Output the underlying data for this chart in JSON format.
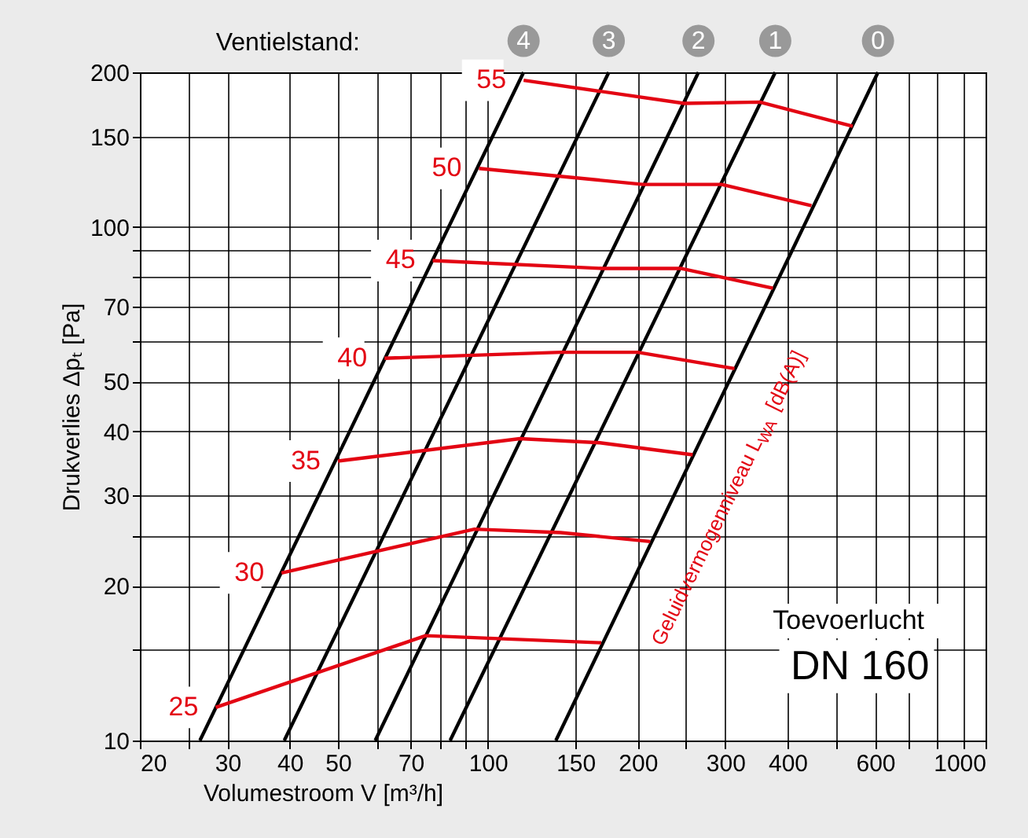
{
  "chart_data": {
    "type": "line",
    "xlabel": "Volumestroom V [m³/h]",
    "ylabel": "Drukverlies Δpₜ [Pa]",
    "log": "xy",
    "grid": true,
    "marker": "none",
    "line_style": "solid",
    "xlim": [
      20,
      1000
    ],
    "ylim": [
      10,
      200
    ],
    "xticks": [
      20,
      {
        "value": 25,
        "label": null
      },
      30,
      40,
      50,
      {
        "value": 60,
        "label": null
      },
      70,
      {
        "value": 80,
        "label": null
      },
      {
        "value": 90,
        "label": null
      },
      100,
      150,
      200,
      {
        "value": 250,
        "label": null
      },
      300,
      400,
      {
        "value": 500,
        "label": null
      },
      600,
      {
        "value": 700,
        "label": null
      },
      {
        "value": 800,
        "label": null
      },
      {
        "value": 900,
        "label": null
      },
      1000
    ],
    "yticks": [
      10,
      {
        "value": 15,
        "label": null
      },
      20,
      {
        "value": 25,
        "label": null
      },
      30,
      40,
      50,
      {
        "value": 60,
        "label": null
      },
      70,
      {
        "value": 80,
        "label": null
      },
      {
        "value": 90,
        "label": null
      },
      100,
      150,
      200
    ],
    "annotations": [
      "Ventielstand:",
      "Geluidvermogenniveau L$_{WA}$ [dB(A)]",
      "Toevoerlucht",
      "DN 160"
    ],
    "series": [
      {
        "name": "4",
        "color": "#000000",
        "x": [
          26.4,
          118
        ],
        "values": [
          10,
          200
        ]
      },
      {
        "name": "3",
        "color": "#000000",
        "x": [
          39,
          175
        ],
        "values": [
          10,
          200
        ]
      },
      {
        "name": "2",
        "color": "#000000",
        "x": [
          59.4,
          265
        ],
        "values": [
          10,
          200
        ]
      },
      {
        "name": "1",
        "color": "#000000",
        "x": [
          84,
          378
        ],
        "values": [
          10,
          200
        ]
      },
      {
        "name": "0",
        "color": "#000000",
        "x": [
          137,
          608
        ],
        "values": [
          10,
          200
        ]
      },
      {
        "name": "55",
        "color": "#e30613",
        "x": [
          118,
          248,
          352,
          541
        ],
        "values": [
          193,
          174,
          175,
          157
        ]
      },
      {
        "name": "50",
        "color": "#e30613",
        "x": [
          96,
          205,
          295,
          447
        ],
        "values": [
          130,
          121,
          121,
          110
        ]
      },
      {
        "name": "45",
        "color": "#e30613",
        "x": [
          77.5,
          170,
          245,
          374
        ],
        "values": [
          86,
          83,
          83,
          76
        ]
      },
      {
        "name": "40",
        "color": "#e30613",
        "x": [
          62,
          140,
          200,
          313
        ],
        "values": [
          55.5,
          57,
          57,
          53
        ]
      },
      {
        "name": "35",
        "color": "#e30613",
        "x": [
          50,
          116,
          168,
          258
        ],
        "values": [
          35,
          38.7,
          38,
          36
        ]
      },
      {
        "name": "30",
        "color": "#e30613",
        "x": [
          38.5,
          94,
          140,
          212
        ],
        "values": [
          21.2,
          25.8,
          25.4,
          24.4
        ]
      },
      {
        "name": "25",
        "color": "#e30613",
        "x": [
          28.4,
          75,
          169
        ],
        "values": [
          11.6,
          16,
          15.5
        ]
      }
    ]
  }
}
